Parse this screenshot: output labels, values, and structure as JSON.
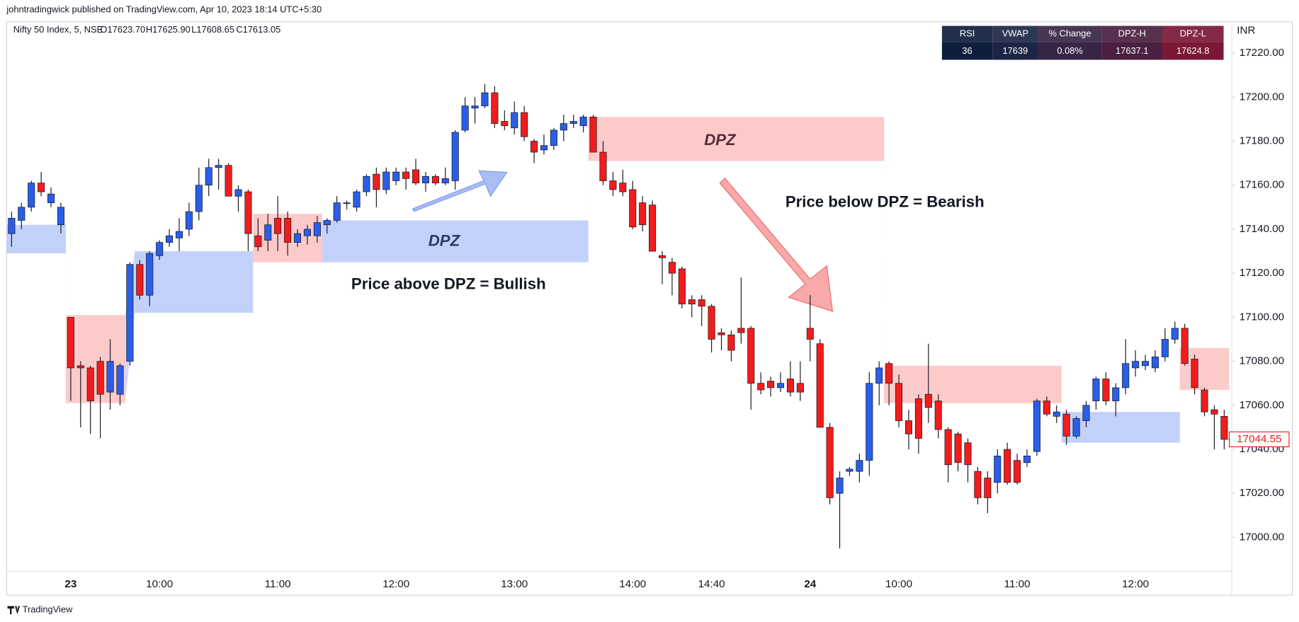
{
  "header": {
    "publisher": "johntradingwick published on TradingView.com, Apr 10, 2023 18:14 UTC+5:30",
    "symbol": "Nifty 50 Index, 5, NSE",
    "ohlc": [
      "O17623.70",
      "H17625.90",
      "L17608.65",
      "C17613.05"
    ]
  },
  "table": {
    "header": [
      "RSI",
      "VWAP",
      "% Change",
      "DPZ-H",
      "DPZ-L"
    ],
    "row": [
      "36",
      "17639",
      "0.08%",
      "17637.1",
      "17624.8"
    ],
    "colors": [
      "#0f1e3c",
      "#1c2644",
      "#372545",
      "#4a1f40",
      "#7b1836"
    ]
  },
  "footer": "TradingView",
  "chart_data": {
    "type": "candlestick",
    "currency": "INR",
    "up_color": "#2a5ee8",
    "down_color": "#f21c1c",
    "grid": false,
    "annotations": [
      "DPZ",
      "Price above DPZ = Bullish",
      "DPZ",
      "Price below DPZ = Bearish"
    ],
    "ylim": [
      16984.6,
      17233.5
    ],
    "yticks": [
      {
        "value": 17000,
        "label": "17000.00"
      },
      {
        "value": 17020,
        "label": "17020.00"
      },
      {
        "value": 17040,
        "label": "17040.00"
      },
      {
        "value": 17060,
        "label": "17060.00"
      },
      {
        "value": 17080,
        "label": "17080.00"
      },
      {
        "value": 17100,
        "label": "17100.00"
      },
      {
        "value": 17120,
        "label": "17120.00"
      },
      {
        "value": 17140,
        "label": "17140.00"
      },
      {
        "value": 17160,
        "label": "17160.00"
      },
      {
        "value": 17180,
        "label": "17180.00"
      },
      {
        "value": 17200,
        "label": "17200.00"
      },
      {
        "value": 17220,
        "label": "17220.00"
      }
    ],
    "categories": [
      null,
      null,
      null,
      null,
      null,
      null,
      "23",
      null,
      null,
      null,
      null,
      null,
      null,
      null,
      null,
      "10:00",
      null,
      null,
      null,
      null,
      null,
      null,
      null,
      null,
      null,
      null,
      null,
      "11:00",
      null,
      null,
      null,
      null,
      null,
      null,
      null,
      null,
      null,
      null,
      null,
      "12:00",
      null,
      null,
      null,
      null,
      null,
      null,
      null,
      null,
      null,
      null,
      null,
      "13:00",
      null,
      null,
      null,
      null,
      null,
      null,
      null,
      null,
      null,
      null,
      null,
      "14:00",
      null,
      null,
      null,
      null,
      null,
      null,
      null,
      "14:40",
      null,
      null,
      null,
      null,
      null,
      null,
      null,
      null,
      null,
      "24",
      null,
      null,
      null,
      null,
      null,
      null,
      null,
      null,
      "10:00",
      null,
      null,
      null,
      null,
      null,
      null,
      null,
      null,
      null,
      null,
      null,
      "11:00",
      null,
      null,
      null,
      null,
      null,
      null,
      null,
      null,
      null,
      null,
      null,
      "12:00",
      null,
      null,
      null,
      null,
      null,
      null,
      null,
      null,
      null
    ],
    "open": [
      17138,
      17144,
      17150,
      17161,
      17152,
      17142,
      17100,
      17078,
      17077,
      17080,
      17066,
      17065,
      17080,
      17124,
      17110,
      17128,
      17134,
      17136,
      17140,
      17148,
      17160,
      17168,
      17169,
      17155,
      17157,
      17137,
      17135,
      17145,
      17145,
      17134,
      17137,
      17137,
      17142,
      17144,
      17152,
      17150,
      17157,
      17165,
      17158,
      17162,
      17166,
      17167,
      17161,
      17164,
      17161,
      17162,
      17185,
      17195,
      17196,
      17202,
      17189,
      17186,
      17193,
      17180,
      17176,
      17178,
      17185,
      17188,
      17187,
      17191,
      17175,
      17162,
      17161,
      17158,
      17152,
      17151,
      17128,
      17125,
      17122,
      17108,
      17108,
      17105,
      17093,
      17092,
      17095,
      17095,
      17070,
      17071,
      17068,
      17072,
      17070,
      17095,
      17088,
      17050,
      17020,
      17030,
      17030,
      17035,
      17070,
      17079,
      17070,
      17053,
      17063,
      17065,
      17062,
      17049,
      17047,
      17043,
      17030,
      17027,
      17025,
      17040,
      17035,
      17034,
      17039,
      17062,
      17055,
      17056,
      17046,
      17053,
      17062,
      17072,
      17062,
      17068,
      17077,
      17078,
      17077,
      17082,
      17090,
      17095,
      17081,
      17067,
      17058,
      17055
    ],
    "high": [
      17148,
      17152,
      17162,
      17166,
      17159,
      17152,
      17100,
      17080,
      17078,
      17082,
      17090,
      17079,
      17125,
      17126,
      17130,
      17135,
      17140,
      17145,
      17152,
      17168,
      17172,
      17172,
      17170,
      17160,
      17158,
      17145,
      17147,
      17155,
      17148,
      17140,
      17142,
      17146,
      17145,
      17155,
      17153,
      17158,
      17165,
      17168,
      17168,
      17168,
      17168,
      17172,
      17166,
      17165,
      17168,
      17185,
      17200,
      17200,
      17206,
      17205,
      17194,
      17198,
      17196,
      17181,
      17183,
      17186,
      17192,
      17192,
      17192,
      17192,
      17180,
      17166,
      17167,
      17162,
      17155,
      17153,
      17130,
      17127,
      17123,
      17110,
      17110,
      17106,
      17095,
      17094,
      17118,
      17096,
      17075,
      17073,
      17075,
      17080,
      17080,
      17110,
      17090,
      17052,
      17030,
      17032,
      17038,
      17075,
      17080,
      17080,
      17074,
      17058,
      17065,
      17088,
      17065,
      17050,
      17048,
      17045,
      17032,
      17030,
      17040,
      17043,
      17038,
      17040,
      17063,
      17064,
      17060,
      17058,
      17055,
      17062,
      17073,
      17075,
      17070,
      17090,
      17085,
      17083,
      17085,
      17095,
      17098,
      17097,
      17083,
      17068,
      17060,
      17058
    ],
    "low": [
      17132,
      17140,
      17148,
      17155,
      17150,
      17138,
      17062,
      17050,
      17047,
      17045,
      17058,
      17060,
      17078,
      17108,
      17105,
      17126,
      17132,
      17130,
      17137,
      17144,
      17155,
      17158,
      17155,
      17148,
      17130,
      17130,
      17130,
      17130,
      17128,
      17132,
      17133,
      17134,
      17138,
      17143,
      17149,
      17148,
      17155,
      17150,
      17156,
      17160,
      17158,
      17160,
      17157,
      17160,
      17160,
      17158,
      17184,
      17188,
      17195,
      17186,
      17185,
      17183,
      17180,
      17170,
      17174,
      17176,
      17180,
      17186,
      17184,
      17175,
      17160,
      17155,
      17155,
      17140,
      17139,
      17130,
      17115,
      17110,
      17104,
      17100,
      17096,
      17084,
      17085,
      17080,
      17088,
      17058,
      17065,
      17064,
      17066,
      17064,
      17062,
      17080,
      17050,
      17015,
      16995,
      17028,
      17025,
      17028,
      17060,
      17060,
      17050,
      17040,
      17038,
      17052,
      17045,
      17025,
      17030,
      17025,
      17015,
      17011,
      17020,
      17024,
      17024,
      17032,
      17037,
      17055,
      17052,
      17042,
      17045,
      17050,
      17058,
      17060,
      17055,
      17065,
      17073,
      17076,
      17075,
      17080,
      17088,
      17078,
      17065,
      17055,
      17040,
      17040
    ],
    "close": [
      17145,
      17150,
      17161,
      17157,
      17156,
      17150,
      17077,
      17077,
      17062,
      17065,
      17080,
      17078,
      17124,
      17110,
      17129,
      17134,
      17137,
      17139,
      17148,
      17160,
      17168,
      17169,
      17155,
      17158,
      17138,
      17132,
      17142,
      17138,
      17134,
      17138,
      17140,
      17143,
      17144,
      17152,
      17152,
      17157,
      17164,
      17158,
      17166,
      17166,
      17163,
      17161,
      17164,
      17161,
      17163,
      17184,
      17196,
      17196,
      17202,
      17188,
      17187,
      17193,
      17182,
      17175,
      17178,
      17185,
      17188,
      17189,
      17191,
      17175,
      17162,
      17158,
      17157,
      17141,
      17142,
      17130,
      17127,
      17120,
      17106,
      17106,
      17105,
      17090,
      17092,
      17085,
      17093,
      17070,
      17067,
      17068,
      17070,
      17066,
      17066,
      17090,
      17050,
      17018,
      17027,
      17031,
      17035,
      17070,
      17077,
      17070,
      17053,
      17047,
      17045,
      17059,
      17049,
      17033,
      17034,
      17033,
      17018,
      17018,
      17037,
      17025,
      17025,
      17037,
      17062,
      17056,
      17057,
      17046,
      17054,
      17060,
      17072,
      17062,
      17068,
      17079,
      17080,
      17080,
      17082,
      17090,
      17095,
      17079,
      17068,
      17057,
      17056,
      17044.55
    ],
    "zones": [
      {
        "start": 0,
        "end": 5,
        "upper": 17142,
        "lower": 17129,
        "color": "#c3d1fa"
      },
      {
        "start": 6,
        "end": 11,
        "upper": 17101,
        "lower": 17061,
        "color": "#fdcaca"
      },
      {
        "start": 13,
        "end": 24,
        "upper": 17130,
        "lower": 17102,
        "color": "#c3d1fa"
      },
      {
        "start": 25,
        "end": 31,
        "upper": 17147,
        "lower": 17125,
        "color": "#fdcaca"
      },
      {
        "start": 32,
        "end": 58,
        "upper": 17144,
        "lower": 17125,
        "color": "#c3d1fa"
      },
      {
        "start": 59,
        "end": 88,
        "upper": 17191,
        "lower": 17171,
        "color": "#fdcaca"
      },
      {
        "start": 89,
        "end": 106,
        "upper": 17078,
        "lower": 17061,
        "color": "#fdcaca"
      },
      {
        "start": 107,
        "end": 118,
        "upper": 17057,
        "lower": 17043,
        "color": "#c3d1fa"
      },
      {
        "start": 119,
        "end": 123,
        "upper": 17086,
        "lower": 17067,
        "color": "#fdcaca"
      }
    ]
  }
}
